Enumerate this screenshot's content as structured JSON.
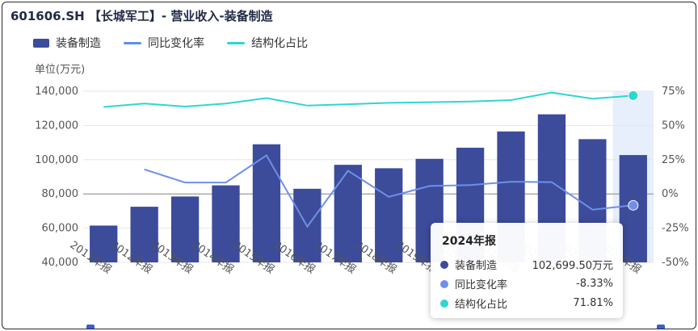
{
  "header": {
    "title": "601606.SH 【长城军工】- 营业收入-装备制造"
  },
  "legend": [
    {
      "label": "装备制造",
      "color": "#3c4b9a"
    },
    {
      "label": "同比变化率",
      "color": "#5b8ff9"
    },
    {
      "label": "结构化占比",
      "color": "#2fd6d0"
    }
  ],
  "unit_label": "单位(万元)",
  "tooltip": {
    "title": "2024年报",
    "rows": [
      {
        "name": "装备制造",
        "value": "102,699.50万元",
        "color": "#3c4b9a"
      },
      {
        "name": "同比变化率",
        "value": "-8.33%",
        "color": "#6f8fe8"
      },
      {
        "name": "结构化占比",
        "value": "71.81%",
        "color": "#2fd6d0"
      }
    ]
  },
  "chart_data": {
    "type": "bar",
    "categories": [
      "2011年报",
      "2012年报",
      "2013年报",
      "2014年报",
      "2015年报",
      "2016年报",
      "2017年报",
      "2018年报",
      "2019年报",
      "2020年报",
      "2021年报",
      "2022年报",
      "2023年报",
      "2024年报"
    ],
    "series": [
      {
        "name": "装备制造",
        "type": "bar",
        "axis": "left",
        "color": "#3c4b9a",
        "values": [
          61500,
          72500,
          78500,
          85000,
          109000,
          83000,
          97000,
          95000,
          100500,
          107000,
          116500,
          126500,
          112000,
          102699.5
        ]
      },
      {
        "name": "同比变化率",
        "type": "line",
        "axis": "right",
        "unit": "%",
        "color": "#6f8fe8",
        "values": [
          null,
          17.9,
          8.3,
          8.3,
          28.2,
          -23.9,
          16.9,
          -2.1,
          5.8,
          6.5,
          8.9,
          8.6,
          -11.5,
          -8.33
        ]
      },
      {
        "name": "结构化占比",
        "type": "line",
        "axis": "right",
        "unit": "%",
        "color": "#2fd6d0",
        "values": [
          63.5,
          66.0,
          63.8,
          66.0,
          70.0,
          64.5,
          65.5,
          66.5,
          67.0,
          67.5,
          68.5,
          74.0,
          69.5,
          71.81
        ]
      }
    ],
    "y_left": {
      "range": [
        40000,
        140000
      ],
      "ticks": [
        40000,
        60000,
        80000,
        100000,
        120000,
        140000
      ],
      "tick_labels": [
        "40,000",
        "60,000",
        "80,000",
        "100,000",
        "120,000",
        "140,000"
      ]
    },
    "y_right": {
      "range": [
        -50,
        75
      ],
      "ticks": [
        -50,
        -25,
        0,
        25,
        50,
        75
      ],
      "tick_labels": [
        "-50%",
        "-25%",
        "0%",
        "25%",
        "50%",
        "75%"
      ]
    },
    "highlight_category": "2024年报",
    "grid": true,
    "legend_position": "top-left"
  }
}
